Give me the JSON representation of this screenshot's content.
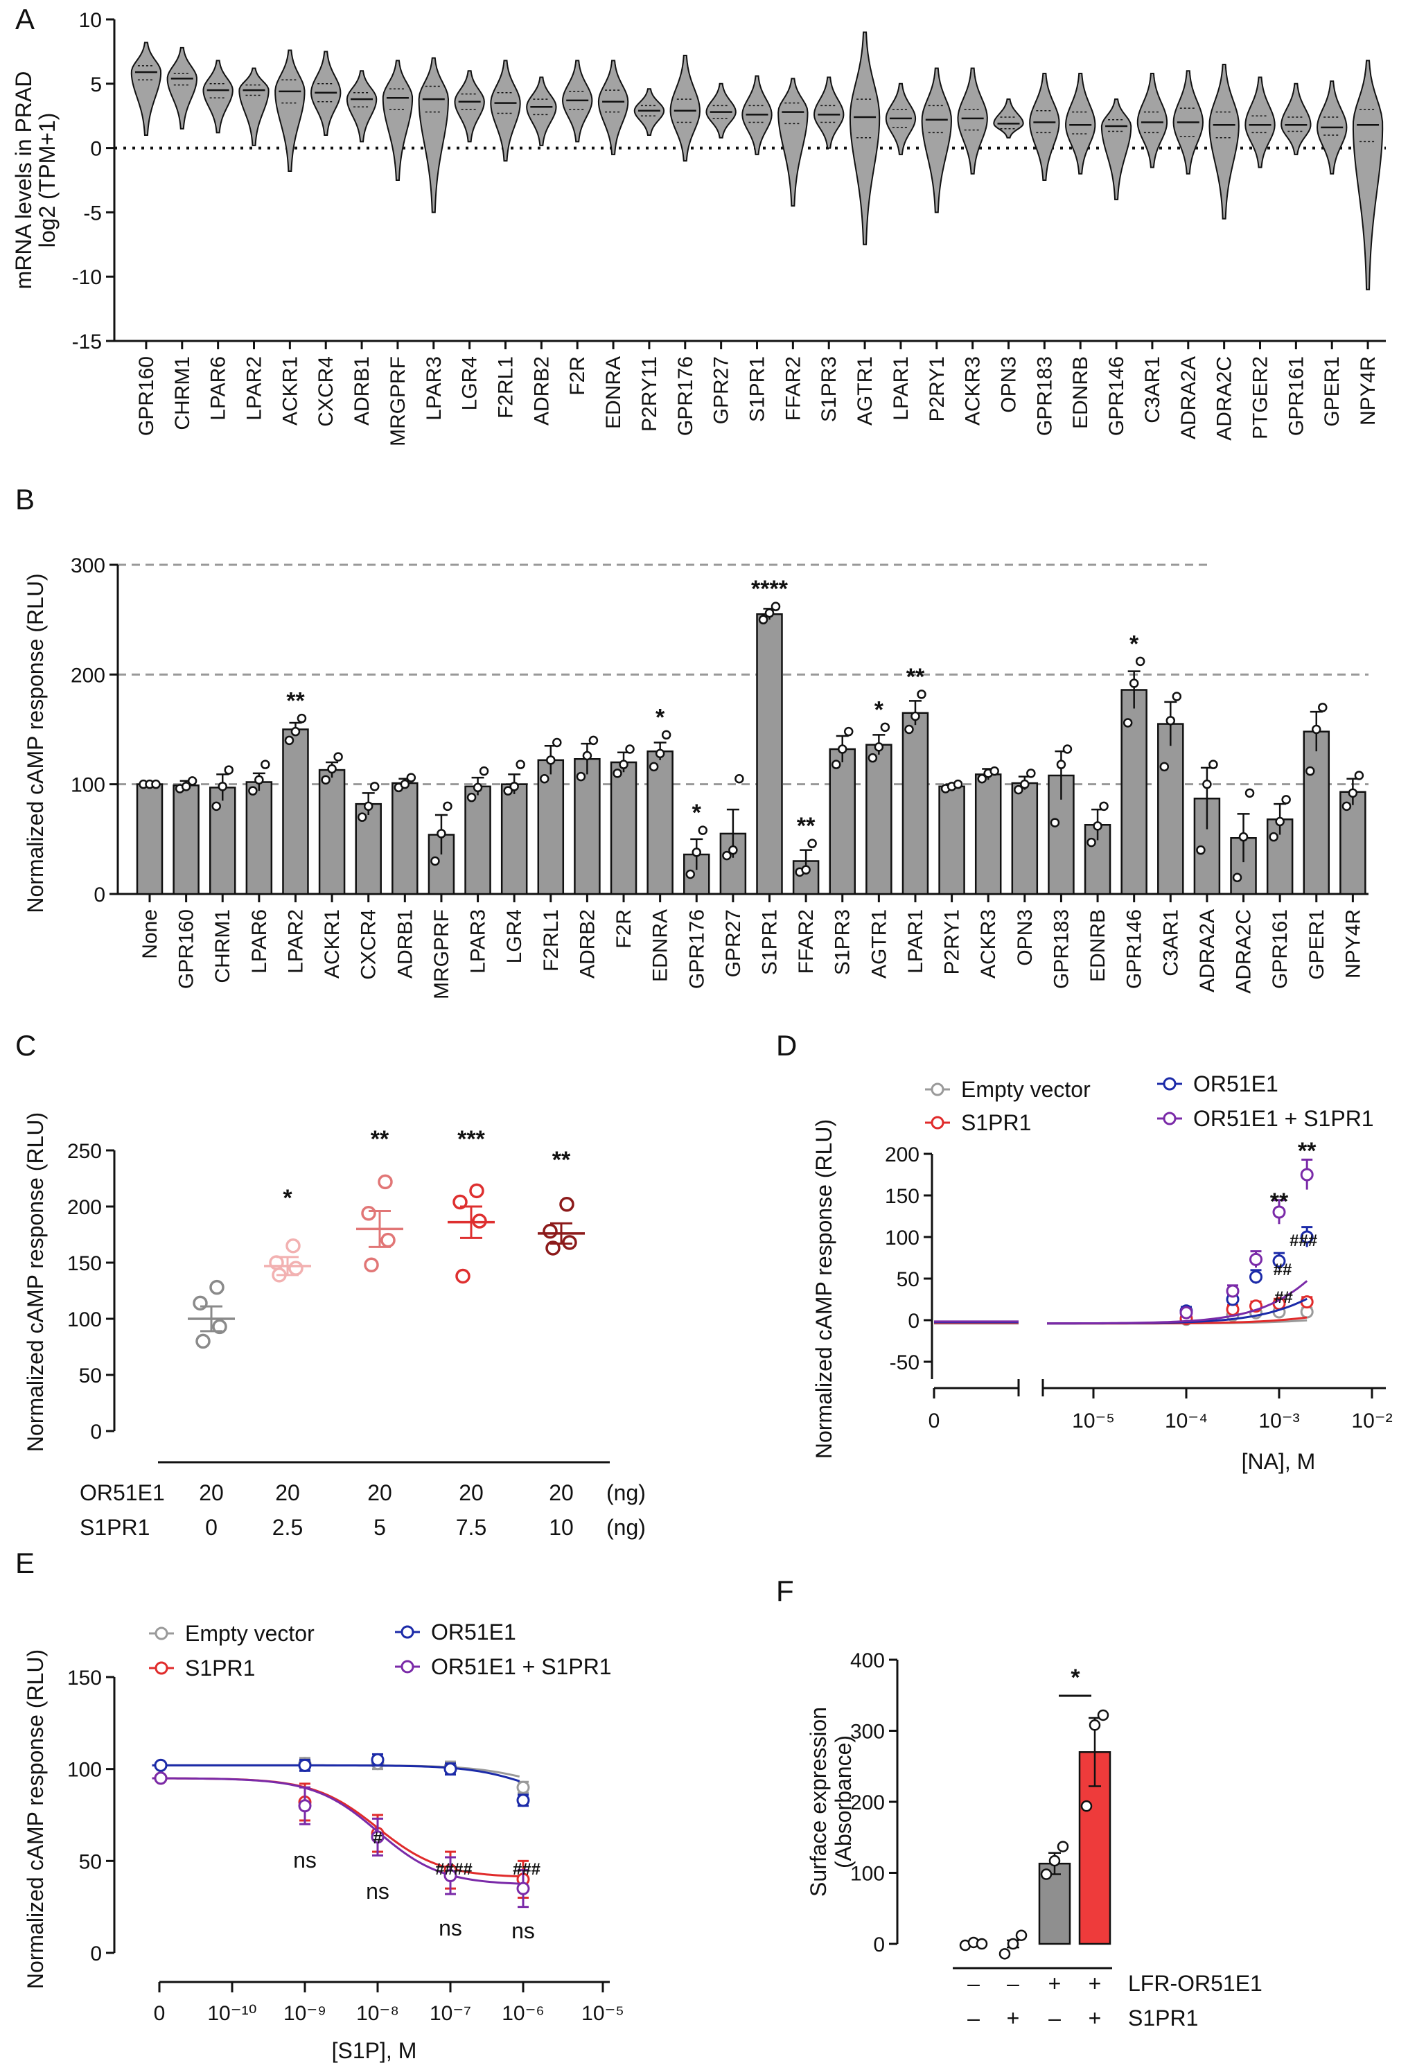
{
  "chart_data": [
    {
      "id": "A",
      "type": "violin",
      "panel": "A",
      "ylabel": "mRNA levels in PRAD\nlog2 (TPM+1)",
      "ylim": [
        -15,
        10
      ],
      "yticks": [
        10,
        5,
        0,
        -5,
        -10,
        -15
      ],
      "reference_line": 0,
      "categories": [
        "GPR160",
        "CHRM1",
        "LPAR6",
        "LPAR2",
        "ACKR1",
        "CXCR4",
        "ADRB1",
        "MRGPRF",
        "LPAR3",
        "LGR4",
        "F2RL1",
        "ADRB2",
        "F2R",
        "EDNRA",
        "P2RY11",
        "GPR176",
        "GPR27",
        "S1PR1",
        "FFAR2",
        "S1PR3",
        "AGTR1",
        "LPAR1",
        "P2RY1",
        "ACKR3",
        "OPN3",
        "GPR183",
        "EDNRB",
        "GPR146",
        "C3AR1",
        "ADRA2A",
        "ADRA2C",
        "PTGER2",
        "GPR161",
        "GPER1",
        "NPY4R"
      ],
      "violins": [
        {
          "min": 1,
          "q1": 5.3,
          "med": 5.9,
          "q3": 6.4,
          "max": 8.2
        },
        {
          "min": 1.5,
          "q1": 4.9,
          "med": 5.4,
          "q3": 5.8,
          "max": 7.8
        },
        {
          "min": 1.2,
          "q1": 3.9,
          "med": 4.5,
          "q3": 5.0,
          "max": 6.8
        },
        {
          "min": 0.2,
          "q1": 4.1,
          "med": 4.5,
          "q3": 4.9,
          "max": 6.2
        },
        {
          "min": -1.8,
          "q1": 3.5,
          "med": 4.4,
          "q3": 5.3,
          "max": 7.6
        },
        {
          "min": 1.0,
          "q1": 3.6,
          "med": 4.3,
          "q3": 5.0,
          "max": 7.5
        },
        {
          "min": 0.5,
          "q1": 3.2,
          "med": 3.8,
          "q3": 4.3,
          "max": 6.0
        },
        {
          "min": -2.5,
          "q1": 3.0,
          "med": 3.9,
          "q3": 4.6,
          "max": 6.8
        },
        {
          "min": -5.0,
          "q1": 2.8,
          "med": 3.8,
          "q3": 4.8,
          "max": 7.0
        },
        {
          "min": 0.5,
          "q1": 3.0,
          "med": 3.6,
          "q3": 4.2,
          "max": 6.0
        },
        {
          "min": -1.0,
          "q1": 2.7,
          "med": 3.5,
          "q3": 4.3,
          "max": 6.8
        },
        {
          "min": 0.2,
          "q1": 2.6,
          "med": 3.2,
          "q3": 3.8,
          "max": 5.5
        },
        {
          "min": 0.5,
          "q1": 3.0,
          "med": 3.7,
          "q3": 4.4,
          "max": 6.8
        },
        {
          "min": -0.5,
          "q1": 2.8,
          "med": 3.6,
          "q3": 4.5,
          "max": 6.8
        },
        {
          "min": 1.0,
          "q1": 2.5,
          "med": 2.9,
          "q3": 3.3,
          "max": 4.6
        },
        {
          "min": -1.0,
          "q1": 2.0,
          "med": 2.9,
          "q3": 3.8,
          "max": 7.2
        },
        {
          "min": 0.8,
          "q1": 2.3,
          "med": 2.8,
          "q3": 3.3,
          "max": 5.0
        },
        {
          "min": -0.5,
          "q1": 2.0,
          "med": 2.6,
          "q3": 3.3,
          "max": 5.6
        },
        {
          "min": -4.5,
          "q1": 1.9,
          "med": 2.8,
          "q3": 3.5,
          "max": 5.4
        },
        {
          "min": 0.0,
          "q1": 2.0,
          "med": 2.6,
          "q3": 3.3,
          "max": 5.5
        },
        {
          "min": -7.5,
          "q1": 0.8,
          "med": 2.4,
          "q3": 3.8,
          "max": 9.0
        },
        {
          "min": -0.5,
          "q1": 1.6,
          "med": 2.3,
          "q3": 3.0,
          "max": 5.0
        },
        {
          "min": -5.0,
          "q1": 1.2,
          "med": 2.2,
          "q3": 3.3,
          "max": 6.2
        },
        {
          "min": -2.0,
          "q1": 1.4,
          "med": 2.3,
          "q3": 3.0,
          "max": 6.2
        },
        {
          "min": 0.8,
          "q1": 1.5,
          "med": 1.9,
          "q3": 2.4,
          "max": 3.8
        },
        {
          "min": -2.5,
          "q1": 1.2,
          "med": 2.0,
          "q3": 2.9,
          "max": 5.8
        },
        {
          "min": -2.0,
          "q1": 1.1,
          "med": 1.8,
          "q3": 2.8,
          "max": 5.8
        },
        {
          "min": -4.0,
          "q1": 1.3,
          "med": 1.7,
          "q3": 2.2,
          "max": 3.8
        },
        {
          "min": -1.5,
          "q1": 1.2,
          "med": 2.0,
          "q3": 2.8,
          "max": 5.8
        },
        {
          "min": -2.0,
          "q1": 0.9,
          "med": 2.0,
          "q3": 3.1,
          "max": 6.0
        },
        {
          "min": -5.5,
          "q1": 0.8,
          "med": 1.8,
          "q3": 2.8,
          "max": 6.5
        },
        {
          "min": -1.5,
          "q1": 1.2,
          "med": 1.8,
          "q3": 2.5,
          "max": 5.5
        },
        {
          "min": -0.5,
          "q1": 1.3,
          "med": 1.8,
          "q3": 2.4,
          "max": 5.0
        },
        {
          "min": -2.0,
          "q1": 1.0,
          "med": 1.6,
          "q3": 2.4,
          "max": 5.2
        },
        {
          "min": -11.0,
          "q1": 0.5,
          "med": 1.8,
          "q3": 3.0,
          "max": 6.8
        }
      ]
    },
    {
      "id": "B",
      "type": "bar",
      "panel": "B",
      "ylabel": "Normalized cAMP response (RLU)",
      "ylim": [
        0,
        300
      ],
      "yticks": [
        0,
        100,
        200,
        300
      ],
      "reference_lines": [
        100,
        200,
        300
      ],
      "categories": [
        "None",
        "GPR160",
        "CHRM1",
        "LPAR6",
        "LPAR2",
        "ACKR1",
        "CXCR4",
        "ADRB1",
        "MRGPRF",
        "LPAR3",
        "LGR4",
        "F2RL1",
        "ADRB2",
        "F2R",
        "EDNRA",
        "GPR176",
        "GPR27",
        "S1PR1",
        "FFAR2",
        "S1PR3",
        "AGTR1",
        "LPAR1",
        "P2RY1",
        "ACKR3",
        "OPN3",
        "GPR183",
        "EDNRB",
        "GPR146",
        "C3AR1",
        "ADRA2A",
        "ADRA2C",
        "GPR161",
        "GPER1",
        "NPY4R"
      ],
      "values": [
        100,
        99,
        97,
        102,
        150,
        113,
        82,
        101,
        54,
        98,
        100,
        122,
        123,
        120,
        130,
        36,
        55,
        255,
        30,
        132,
        136,
        165,
        98,
        109,
        101,
        108,
        63,
        186,
        155,
        87,
        51,
        68,
        148,
        93
      ],
      "errors": [
        0,
        4,
        12,
        8,
        6,
        7,
        10,
        4,
        18,
        8,
        9,
        13,
        14,
        9,
        8,
        14,
        22,
        5,
        10,
        12,
        9,
        11,
        2,
        5,
        6,
        22,
        14,
        17,
        20,
        28,
        22,
        14,
        18,
        12
      ],
      "points": [
        [
          100,
          100,
          100
        ],
        [
          96,
          98,
          103
        ],
        [
          80,
          98,
          113
        ],
        [
          94,
          104,
          118
        ],
        [
          140,
          148,
          160
        ],
        [
          104,
          114,
          125
        ],
        [
          70,
          80,
          98
        ],
        [
          97,
          100,
          106
        ],
        [
          30,
          55,
          80
        ],
        [
          88,
          97,
          112
        ],
        [
          94,
          98,
          118
        ],
        [
          105,
          122,
          138
        ],
        [
          107,
          126,
          140
        ],
        [
          110,
          118,
          132
        ],
        [
          116,
          128,
          145
        ],
        [
          18,
          38,
          58
        ],
        [
          35,
          40,
          105
        ],
        [
          250,
          256,
          262
        ],
        [
          20,
          22,
          46
        ],
        [
          118,
          132,
          148
        ],
        [
          124,
          134,
          152
        ],
        [
          150,
          162,
          182
        ],
        [
          96,
          98,
          100
        ],
        [
          105,
          110,
          112
        ],
        [
          95,
          100,
          110
        ],
        [
          65,
          118,
          132
        ],
        [
          47,
          62,
          80
        ],
        [
          156,
          192,
          212
        ],
        [
          116,
          158,
          180
        ],
        [
          40,
          100,
          118
        ],
        [
          15,
          52,
          92
        ],
        [
          52,
          66,
          86
        ],
        [
          112,
          150,
          170
        ],
        [
          80,
          92,
          108
        ]
      ],
      "annotations": {
        "LPAR2": "**",
        "EDNRA": "*",
        "GPR176": "*",
        "S1PR1": "****",
        "FFAR2": "**",
        "AGTR1": "*",
        "LPAR1": "**",
        "GPR146": "*"
      }
    },
    {
      "id": "C",
      "type": "scatter",
      "panel": "C",
      "ylabel": "Normalized cAMP response (RLU)",
      "ylim": [
        0,
        250
      ],
      "yticks": [
        0,
        50,
        100,
        150,
        200,
        250
      ],
      "rows": [
        {
          "label": "OR51E1",
          "values": [
            "20",
            "20",
            "20",
            "20",
            "20"
          ],
          "unit": "(ng)"
        },
        {
          "label": "S1PR1",
          "values": [
            "0",
            "2.5",
            "5",
            "7.5",
            "10"
          ],
          "unit": "(ng)"
        }
      ],
      "means": [
        100,
        147,
        180,
        186,
        176
      ],
      "errors": [
        11,
        8,
        16,
        14,
        9
      ],
      "points": [
        [
          80,
          93,
          114,
          128
        ],
        [
          139,
          145,
          150,
          165
        ],
        [
          148,
          170,
          194,
          222
        ],
        [
          138,
          187,
          204,
          214
        ],
        [
          163,
          168,
          178,
          202
        ]
      ],
      "colors": [
        "#8a8a8a",
        "#f2b1b1",
        "#e17676",
        "#de2f2f",
        "#8c1a1a"
      ],
      "annotations": [
        "",
        "*",
        "**",
        "***",
        "**"
      ]
    },
    {
      "id": "D",
      "type": "line",
      "panel": "D",
      "ylabel": "Normalized cAMP response (RLU)",
      "xlabel": "[NA], M",
      "ylim": [
        -50,
        200
      ],
      "yticks": [
        -50,
        0,
        50,
        100,
        150,
        200
      ],
      "xticks": [
        "0",
        "10⁻⁵",
        "10⁻⁴",
        "10⁻³",
        "10⁻²"
      ],
      "series": [
        {
          "name": "Empty vector",
          "color": "#9a9a9a",
          "x": [
            -4,
            -3.5,
            -3.25,
            -3,
            -2.7
          ],
          "y": [
            1,
            6,
            9,
            10,
            10
          ]
        },
        {
          "name": "S1PR1",
          "color": "#e02b2b",
          "x": [
            -4,
            -3.5,
            -3.25,
            -3,
            -2.7
          ],
          "y": [
            2,
            13,
            17,
            20,
            22
          ]
        },
        {
          "name": "OR51E1",
          "color": "#1b2aa8",
          "x": [
            -4,
            -3.5,
            -3.25,
            -3,
            -2.7
          ],
          "y": [
            11,
            25,
            52,
            71,
            100
          ]
        },
        {
          "name": "OR51E1 + S1PR1",
          "color": "#7a2aa8",
          "x": [
            -4,
            -3.5,
            -3.25,
            -3,
            -2.7
          ],
          "y": [
            9,
            35,
            73,
            130,
            175
          ]
        }
      ],
      "annotations": [
        "**",
        "**",
        "##",
        "##",
        "###"
      ]
    },
    {
      "id": "E",
      "type": "line",
      "panel": "E",
      "ylabel": "Normalized cAMP response (RLU)",
      "xlabel": "[S1P], M",
      "ylim": [
        0,
        150
      ],
      "yticks": [
        0,
        50,
        100,
        150
      ],
      "xticks": [
        "0",
        "10⁻¹⁰",
        "10⁻⁹",
        "10⁻⁸",
        "10⁻⁷",
        "10⁻⁶",
        "10⁻⁵"
      ],
      "series": [
        {
          "name": "Empty vector",
          "color": "#9a9a9a",
          "x": [
            -9,
            -8,
            -7,
            -6
          ],
          "y": [
            103,
            103,
            101,
            90
          ]
        },
        {
          "name": "S1PR1",
          "color": "#e02b2b",
          "x": [
            -9,
            -8,
            -7,
            -6
          ],
          "y": [
            82,
            65,
            45,
            40
          ]
        },
        {
          "name": "OR51E1",
          "color": "#1b2aa8",
          "x": [
            -9,
            -8,
            -7,
            -6
          ],
          "y": [
            102,
            105,
            100,
            83
          ]
        },
        {
          "name": "OR51E1 + S1PR1",
          "color": "#7a2aa8",
          "x": [
            -9,
            -8,
            -7,
            -6
          ],
          "y": [
            80,
            63,
            42,
            35
          ]
        }
      ],
      "annotations": [
        "ns",
        "ns",
        "ns",
        "ns",
        "#",
        "####",
        "###"
      ]
    },
    {
      "id": "F",
      "type": "bar",
      "panel": "F",
      "ylabel": "Surface expression\n(Absorbance)",
      "ylim": [
        0,
        400
      ],
      "yticks": [
        0,
        100,
        200,
        300,
        400
      ],
      "values": [
        0,
        0,
        113,
        270
      ],
      "errors": [
        2,
        5,
        15,
        48
      ],
      "points": [
        [
          -2,
          2,
          0
        ],
        [
          -14,
          0,
          12
        ],
        [
          98,
          117,
          137
        ],
        [
          194,
          308,
          322
        ]
      ],
      "colors": [
        "#8f8f8f",
        "#8f8f8f",
        "#8f8f8f",
        "#ee3b3b"
      ],
      "rows": [
        {
          "label": "LFR-OR51E1",
          "values": [
            "–",
            "–",
            "+",
            "+"
          ]
        },
        {
          "label": "S1PR1",
          "values": [
            "–",
            "+",
            "–",
            "+"
          ]
        }
      ],
      "annotations": [
        "*"
      ]
    }
  ]
}
